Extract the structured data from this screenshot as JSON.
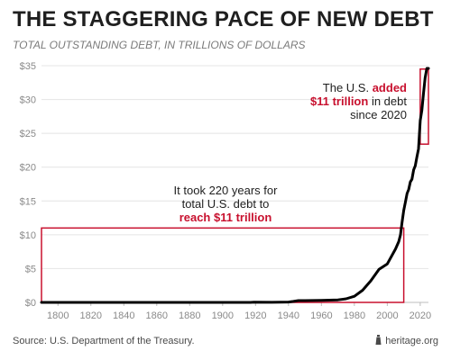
{
  "chart_data": {
    "type": "line",
    "title": "THE STAGGERING PACE OF NEW DEBT",
    "subtitle": "TOTAL OUTSTANDING DEBT, IN TRILLIONS OF DOLLARS",
    "xlabel": "",
    "ylabel": "",
    "xlim": [
      1790,
      2025
    ],
    "ylim": [
      0,
      35
    ],
    "x_ticks": [
      1800,
      1820,
      1840,
      1860,
      1880,
      1900,
      1920,
      1940,
      1960,
      1980,
      2000,
      2020
    ],
    "y_ticks": [
      0,
      5,
      10,
      15,
      20,
      25,
      30,
      35
    ],
    "y_tick_labels": [
      "$0",
      "$5",
      "$10",
      "$15",
      "$20",
      "$25",
      "$30",
      "$35"
    ],
    "grid": "horizontal",
    "series": [
      {
        "color": "#000000",
        "x": [
          1790,
          1800,
          1820,
          1840,
          1860,
          1880,
          1900,
          1917,
          1919,
          1930,
          1940,
          1943,
          1946,
          1950,
          1960,
          1970,
          1975,
          1980,
          1985,
          1990,
          1995,
          2000,
          2005,
          2007,
          2008,
          2009,
          2010,
          2011,
          2012,
          2013,
          2014,
          2015,
          2016,
          2017,
          2018,
          2019,
          2020,
          2021,
          2022,
          2023,
          2024,
          2025
        ],
        "y": [
          0.0001,
          0.0001,
          0.0001,
          0.0001,
          0.0001,
          0.002,
          0.002,
          0.003,
          0.027,
          0.016,
          0.05,
          0.14,
          0.27,
          0.26,
          0.29,
          0.37,
          0.53,
          0.91,
          1.8,
          3.2,
          4.9,
          5.7,
          7.9,
          9.0,
          10.0,
          11.9,
          13.6,
          14.8,
          16.1,
          16.7,
          17.8,
          18.2,
          19.6,
          20.2,
          21.5,
          22.7,
          26.9,
          28.4,
          30.9,
          33.2,
          35.5,
          36.2
        ]
      }
    ],
    "highlight_boxes": [
      {
        "x": [
          1790,
          2010
        ],
        "y": [
          0,
          11
        ],
        "color": "#c8102e"
      },
      {
        "x": [
          2020,
          2025
        ],
        "y": [
          23.4,
          34.5
        ],
        "color": "#c8102e"
      }
    ],
    "annotations": [
      {
        "lines": [
          "It took 220 years for",
          "total U.S. debt to"
        ],
        "emphasis": "reach $11 trillion"
      },
      {
        "lead": "The U.S.",
        "emphasis": "added",
        "emphasis2": "$11 trillion",
        "tail": "in debt",
        "last": "since 2020"
      }
    ]
  },
  "footer": {
    "source": "Source: U.S. Department of the Treasury.",
    "brand": "heritage.org",
    "brand_icon": "lighthouse-icon"
  }
}
